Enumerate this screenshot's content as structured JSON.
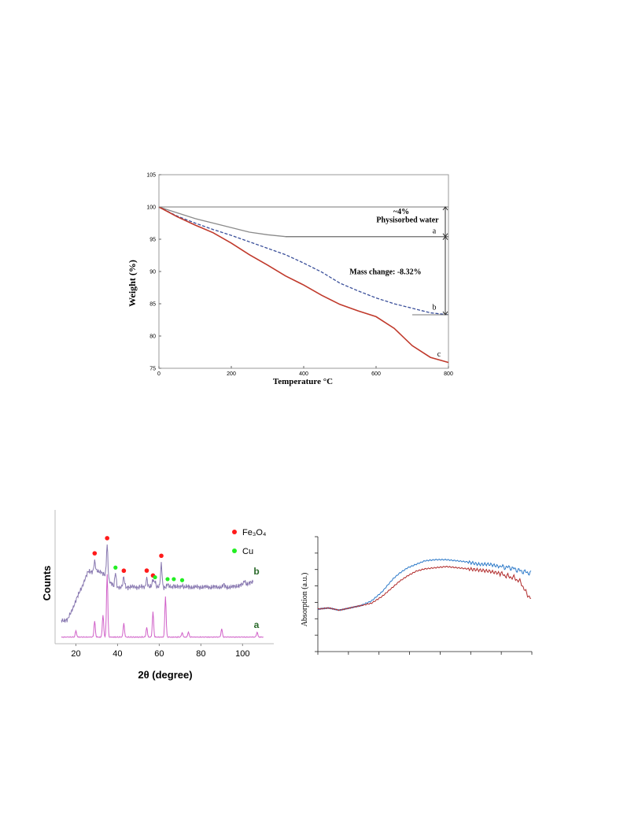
{
  "chart_data": [
    {
      "type": "line",
      "xlabel": "Temperature °C",
      "ylabel": "Weight (%)",
      "xlim": [
        0,
        800
      ],
      "ylim": [
        75,
        105
      ],
      "xticks": [
        0,
        200,
        400,
        600,
        800
      ],
      "yticks": [
        75,
        80,
        85,
        90,
        95,
        100,
        105
      ],
      "colors": {
        "a": "#8a8a8a",
        "b": "#3a4f9a",
        "c": "#c0392b",
        "frame": "#9a9a9a"
      },
      "series": [
        {
          "name": "a",
          "style": "solid",
          "x": [
            0,
            50,
            100,
            150,
            200,
            250,
            300,
            350,
            400,
            500,
            600,
            700,
            800
          ],
          "y": [
            100,
            99.1,
            98.2,
            97.5,
            96.8,
            96.1,
            95.7,
            95.4,
            95.4,
            95.4,
            95.4,
            95.4,
            95.4
          ]
        },
        {
          "name": "b",
          "style": "dashed",
          "x": [
            0,
            50,
            100,
            150,
            200,
            250,
            300,
            350,
            400,
            450,
            500,
            550,
            600,
            650,
            700,
            750,
            800
          ],
          "y": [
            100,
            98.6,
            97.5,
            96.5,
            95.6,
            94.6,
            93.6,
            92.6,
            91.3,
            89.9,
            88.2,
            87.0,
            85.9,
            85.0,
            84.3,
            83.6,
            83.3
          ]
        },
        {
          "name": "c",
          "style": "solid",
          "x": [
            0,
            50,
            100,
            150,
            200,
            250,
            300,
            350,
            400,
            450,
            500,
            550,
            600,
            650,
            700,
            750,
            800
          ],
          "y": [
            100,
            98.5,
            97.2,
            96.0,
            94.4,
            92.6,
            91.0,
            89.3,
            87.9,
            86.3,
            84.9,
            83.9,
            83.0,
            81.2,
            78.5,
            76.7,
            75.9
          ]
        }
      ],
      "annotations": [
        {
          "text": "~4%"
        },
        {
          "text": "Physisorbed water"
        },
        {
          "text": "Mass change: -8.32%"
        },
        {
          "text": "a"
        },
        {
          "text": "b"
        },
        {
          "text": "c"
        }
      ]
    },
    {
      "type": "line",
      "xlabel": "2θ (degree)",
      "ylabel": "Counts",
      "xlim": [
        10,
        115
      ],
      "xticks": [
        20,
        40,
        60,
        80,
        100
      ],
      "colors": {
        "a": "#d060c8",
        "b": "#8878b0",
        "fe3o4": "#ff1a1a",
        "cu": "#22ee22",
        "label": "#2a6a2a"
      },
      "legend": [
        {
          "label": "Fe₃O₄",
          "marker": "red-dot"
        },
        {
          "label": "Cu",
          "marker": "green-dot"
        }
      ],
      "series": [
        {
          "name": "a",
          "peaks": [
            [
              20,
              0.1
            ],
            [
              29,
              0.25
            ],
            [
              33,
              0.35
            ],
            [
              35,
              1.0
            ],
            [
              43,
              0.22
            ],
            [
              54,
              0.15
            ],
            [
              57,
              0.4
            ],
            [
              63,
              0.65
            ],
            [
              71,
              0.07
            ],
            [
              74,
              0.08
            ],
            [
              90,
              0.13
            ],
            [
              107,
              0.08
            ]
          ]
        },
        {
          "name": "b",
          "peaks": [
            [
              29,
              0.2
            ],
            [
              35,
              0.7
            ],
            [
              39,
              0.3
            ],
            [
              43,
              0.2
            ],
            [
              54,
              0.2
            ],
            [
              57,
              0.16
            ],
            [
              58,
              0.14
            ],
            [
              61,
              0.48
            ],
            [
              64,
              0.06
            ],
            [
              67,
              0.05
            ],
            [
              71,
              0.05
            ],
            [
              91,
              0.05
            ],
            [
              101,
              0.08
            ]
          ]
        }
      ],
      "markers": {
        "fe3o4": [
          [
            29,
            "b"
          ],
          [
            35,
            "b"
          ],
          [
            43,
            "b"
          ],
          [
            54,
            "b"
          ],
          [
            57,
            "b"
          ],
          [
            61,
            "b"
          ]
        ],
        "cu": [
          [
            39,
            "b"
          ],
          [
            58,
            "b"
          ],
          [
            64,
            "b"
          ],
          [
            67,
            "b"
          ],
          [
            71,
            "b"
          ]
        ]
      },
      "labels": [
        "a",
        "b"
      ]
    },
    {
      "type": "line",
      "ylabel": "Absorption (a.u.)",
      "xlim": [
        0,
        100
      ],
      "ylim": [
        0,
        100
      ],
      "colors": {
        "blue": "#2a78c8",
        "red": "#b02a2a"
      },
      "series": [
        {
          "name": "",
          "color": "blue",
          "x": [
            0,
            5,
            10,
            15,
            20,
            25,
            30,
            35,
            38,
            42,
            46,
            50,
            55,
            60,
            65,
            70,
            75,
            80,
            85,
            90,
            95,
            100
          ],
          "y": [
            37,
            38,
            36,
            38,
            40,
            44,
            52,
            63,
            68,
            73,
            76,
            79,
            80,
            80,
            79,
            78,
            76,
            76,
            74,
            73,
            70,
            68
          ]
        },
        {
          "name": "",
          "color": "red",
          "x": [
            0,
            5,
            10,
            15,
            20,
            25,
            30,
            35,
            38,
            42,
            46,
            50,
            55,
            60,
            65,
            70,
            75,
            80,
            85,
            88,
            92,
            95,
            97,
            100
          ],
          "y": [
            37,
            38,
            36,
            38,
            40,
            42,
            48,
            56,
            61,
            66,
            70,
            72,
            73,
            74,
            73,
            72,
            71,
            70,
            68,
            66,
            64,
            60,
            52,
            45
          ]
        }
      ]
    }
  ]
}
